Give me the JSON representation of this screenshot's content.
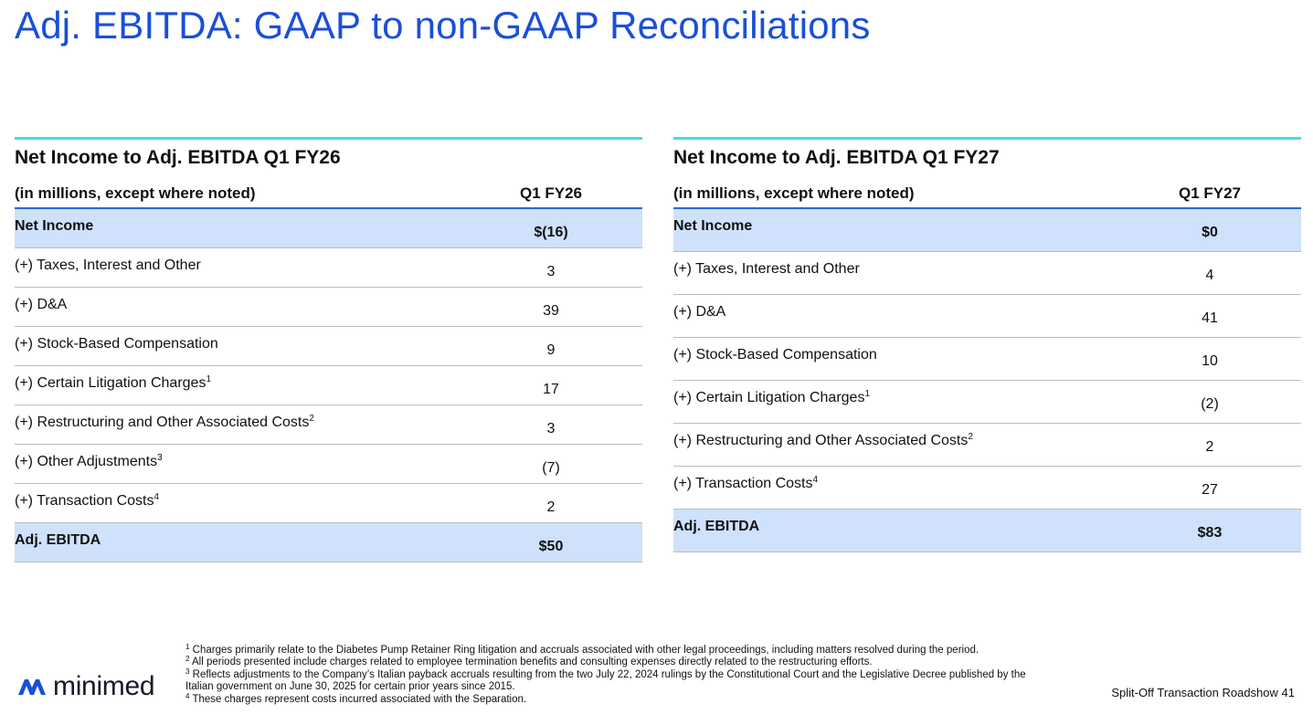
{
  "title": "Adj. EBITDA:  GAAP to non-GAAP Reconciliations",
  "panels": [
    {
      "title": "Net Income to Adj. EBITDA Q1 FY26",
      "header_label": "(in millions, except where noted)",
      "header_col": "Q1 FY26",
      "rows": [
        {
          "label": "Net Income",
          "sup": "",
          "value": "$(16)"
        },
        {
          "label": "(+) Taxes, Interest and Other",
          "sup": "",
          "value": "3"
        },
        {
          "label": "(+) D&A",
          "sup": "",
          "value": "39"
        },
        {
          "label": "(+) Stock-Based Compensation",
          "sup": "",
          "value": "9"
        },
        {
          "label": "(+) Certain Litigation Charges",
          "sup": "1",
          "value": "17"
        },
        {
          "label": "(+) Restructuring and Other Associated Costs",
          "sup": "2",
          "value": "3"
        },
        {
          "label": "(+) Other Adjustments",
          "sup": "3",
          "value": "(7)"
        },
        {
          "label": "(+) Transaction Costs",
          "sup": "4",
          "value": "2"
        },
        {
          "label": "Adj. EBITDA",
          "sup": "",
          "value": "$50"
        }
      ]
    },
    {
      "title": "Net Income to Adj. EBITDA Q1 FY27",
      "header_label": "(in millions, except where noted)",
      "header_col": "Q1 FY27",
      "rows": [
        {
          "label": "Net Income",
          "sup": "",
          "value": "$0"
        },
        {
          "label": "(+) Taxes, Interest and Other",
          "sup": "",
          "value": "4"
        },
        {
          "label": "(+) D&A",
          "sup": "",
          "value": "41"
        },
        {
          "label": "(+) Stock-Based Compensation",
          "sup": "",
          "value": "10"
        },
        {
          "label": "(+) Certain Litigation Charges",
          "sup": "1",
          "value": "(2)"
        },
        {
          "label": "(+) Restructuring and Other Associated Costs",
          "sup": "2",
          "value": "2"
        },
        {
          "label": "(+) Transaction Costs",
          "sup": "4",
          "value": "27"
        },
        {
          "label": "Adj. EBITDA",
          "sup": "",
          "value": "$83"
        }
      ]
    }
  ],
  "footnotes": [
    {
      "num": "1",
      "text": "Charges primarily relate to the Diabetes Pump Retainer Ring litigation and accruals associated with other legal proceedings, including matters resolved during the period."
    },
    {
      "num": "2",
      "text": "All periods presented include charges related to employee termination benefits and consulting expenses directly related to the restructuring efforts."
    },
    {
      "num": "3",
      "text": "Reflects adjustments to the Company’s Italian payback accruals resulting from the two July 22, 2024 rulings by the Constitutional Court and the Legislative Decree published by the Italian government on June 30, 2025 for certain prior years since 2015."
    },
    {
      "num": "4",
      "text": "These charges represent costs incurred associated with the Separation."
    }
  ],
  "logo": {
    "text": "minimed",
    "icon": "minimed-logo-icon",
    "color": "#1a4fd8"
  },
  "footer": {
    "label": "Split-Off Transaction Roadshow",
    "page": "41"
  },
  "colors": {
    "title": "#1a4fd8",
    "accent_rule": "#3ee0ea",
    "header_rule": "#2a69d8",
    "shade": "#cfe1fb"
  }
}
